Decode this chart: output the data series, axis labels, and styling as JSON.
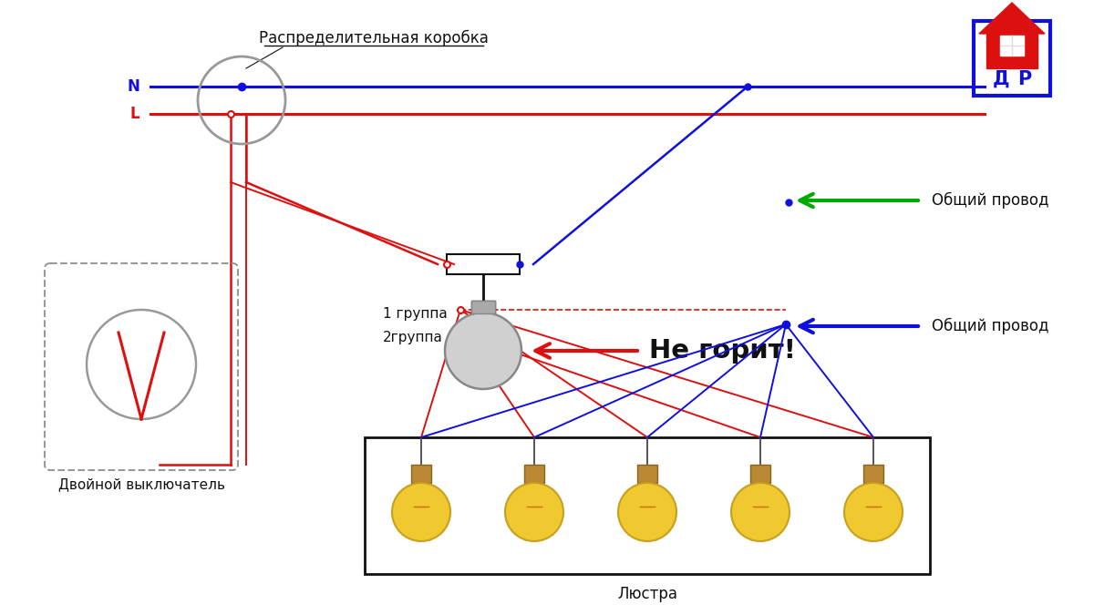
{
  "bg_color": "#ffffff",
  "n_label": "N",
  "l_label": "L",
  "blue_color": "#1010dd",
  "red_color": "#dd1010",
  "green_color": "#00aa00",
  "gray_color": "#999999",
  "black_color": "#111111",
  "label_dist_box": "Распределительная коробка",
  "label_switch": "Двойной выключатель",
  "label_chandelier": "Люстра",
  "label_common1": "Общий провод",
  "label_common2": "Общий провод",
  "label_not_burning": "Не горит!",
  "label_group1": "1 группа",
  "label_group2": "2группа",
  "fig_w": 12.0,
  "fig_h": 6.75,
  "dpi": 100
}
